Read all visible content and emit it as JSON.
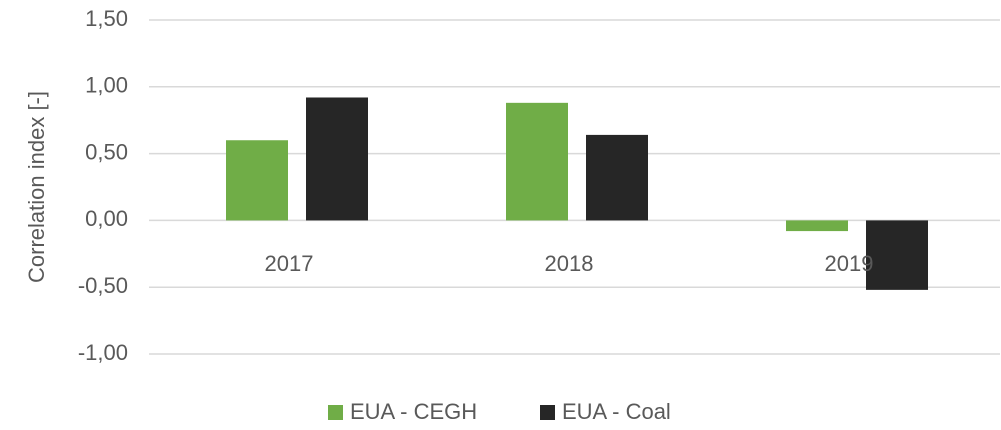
{
  "chart_data": {
    "type": "bar",
    "y_label": "Correlation index [-]",
    "categories": [
      "2017",
      "2018",
      "2019"
    ],
    "series": [
      {
        "name": "EUA - CEGH",
        "color": "#70ad47",
        "values": [
          0.6,
          0.88,
          -0.08
        ]
      },
      {
        "name": "EUA - Coal",
        "color": "#262626",
        "values": [
          0.92,
          0.64,
          -0.52
        ]
      }
    ],
    "ylim": [
      -1.0,
      1.5
    ],
    "yticks": [
      {
        "value": -1.0,
        "label": "-1,00"
      },
      {
        "value": -0.5,
        "label": "-0,50"
      },
      {
        "value": 0.0,
        "label": "0,00"
      },
      {
        "value": 0.5,
        "label": "0,50"
      },
      {
        "value": 1.0,
        "label": "1,00"
      },
      {
        "value": 1.5,
        "label": "1,50"
      }
    ],
    "grid": true,
    "legend": "bottom"
  }
}
